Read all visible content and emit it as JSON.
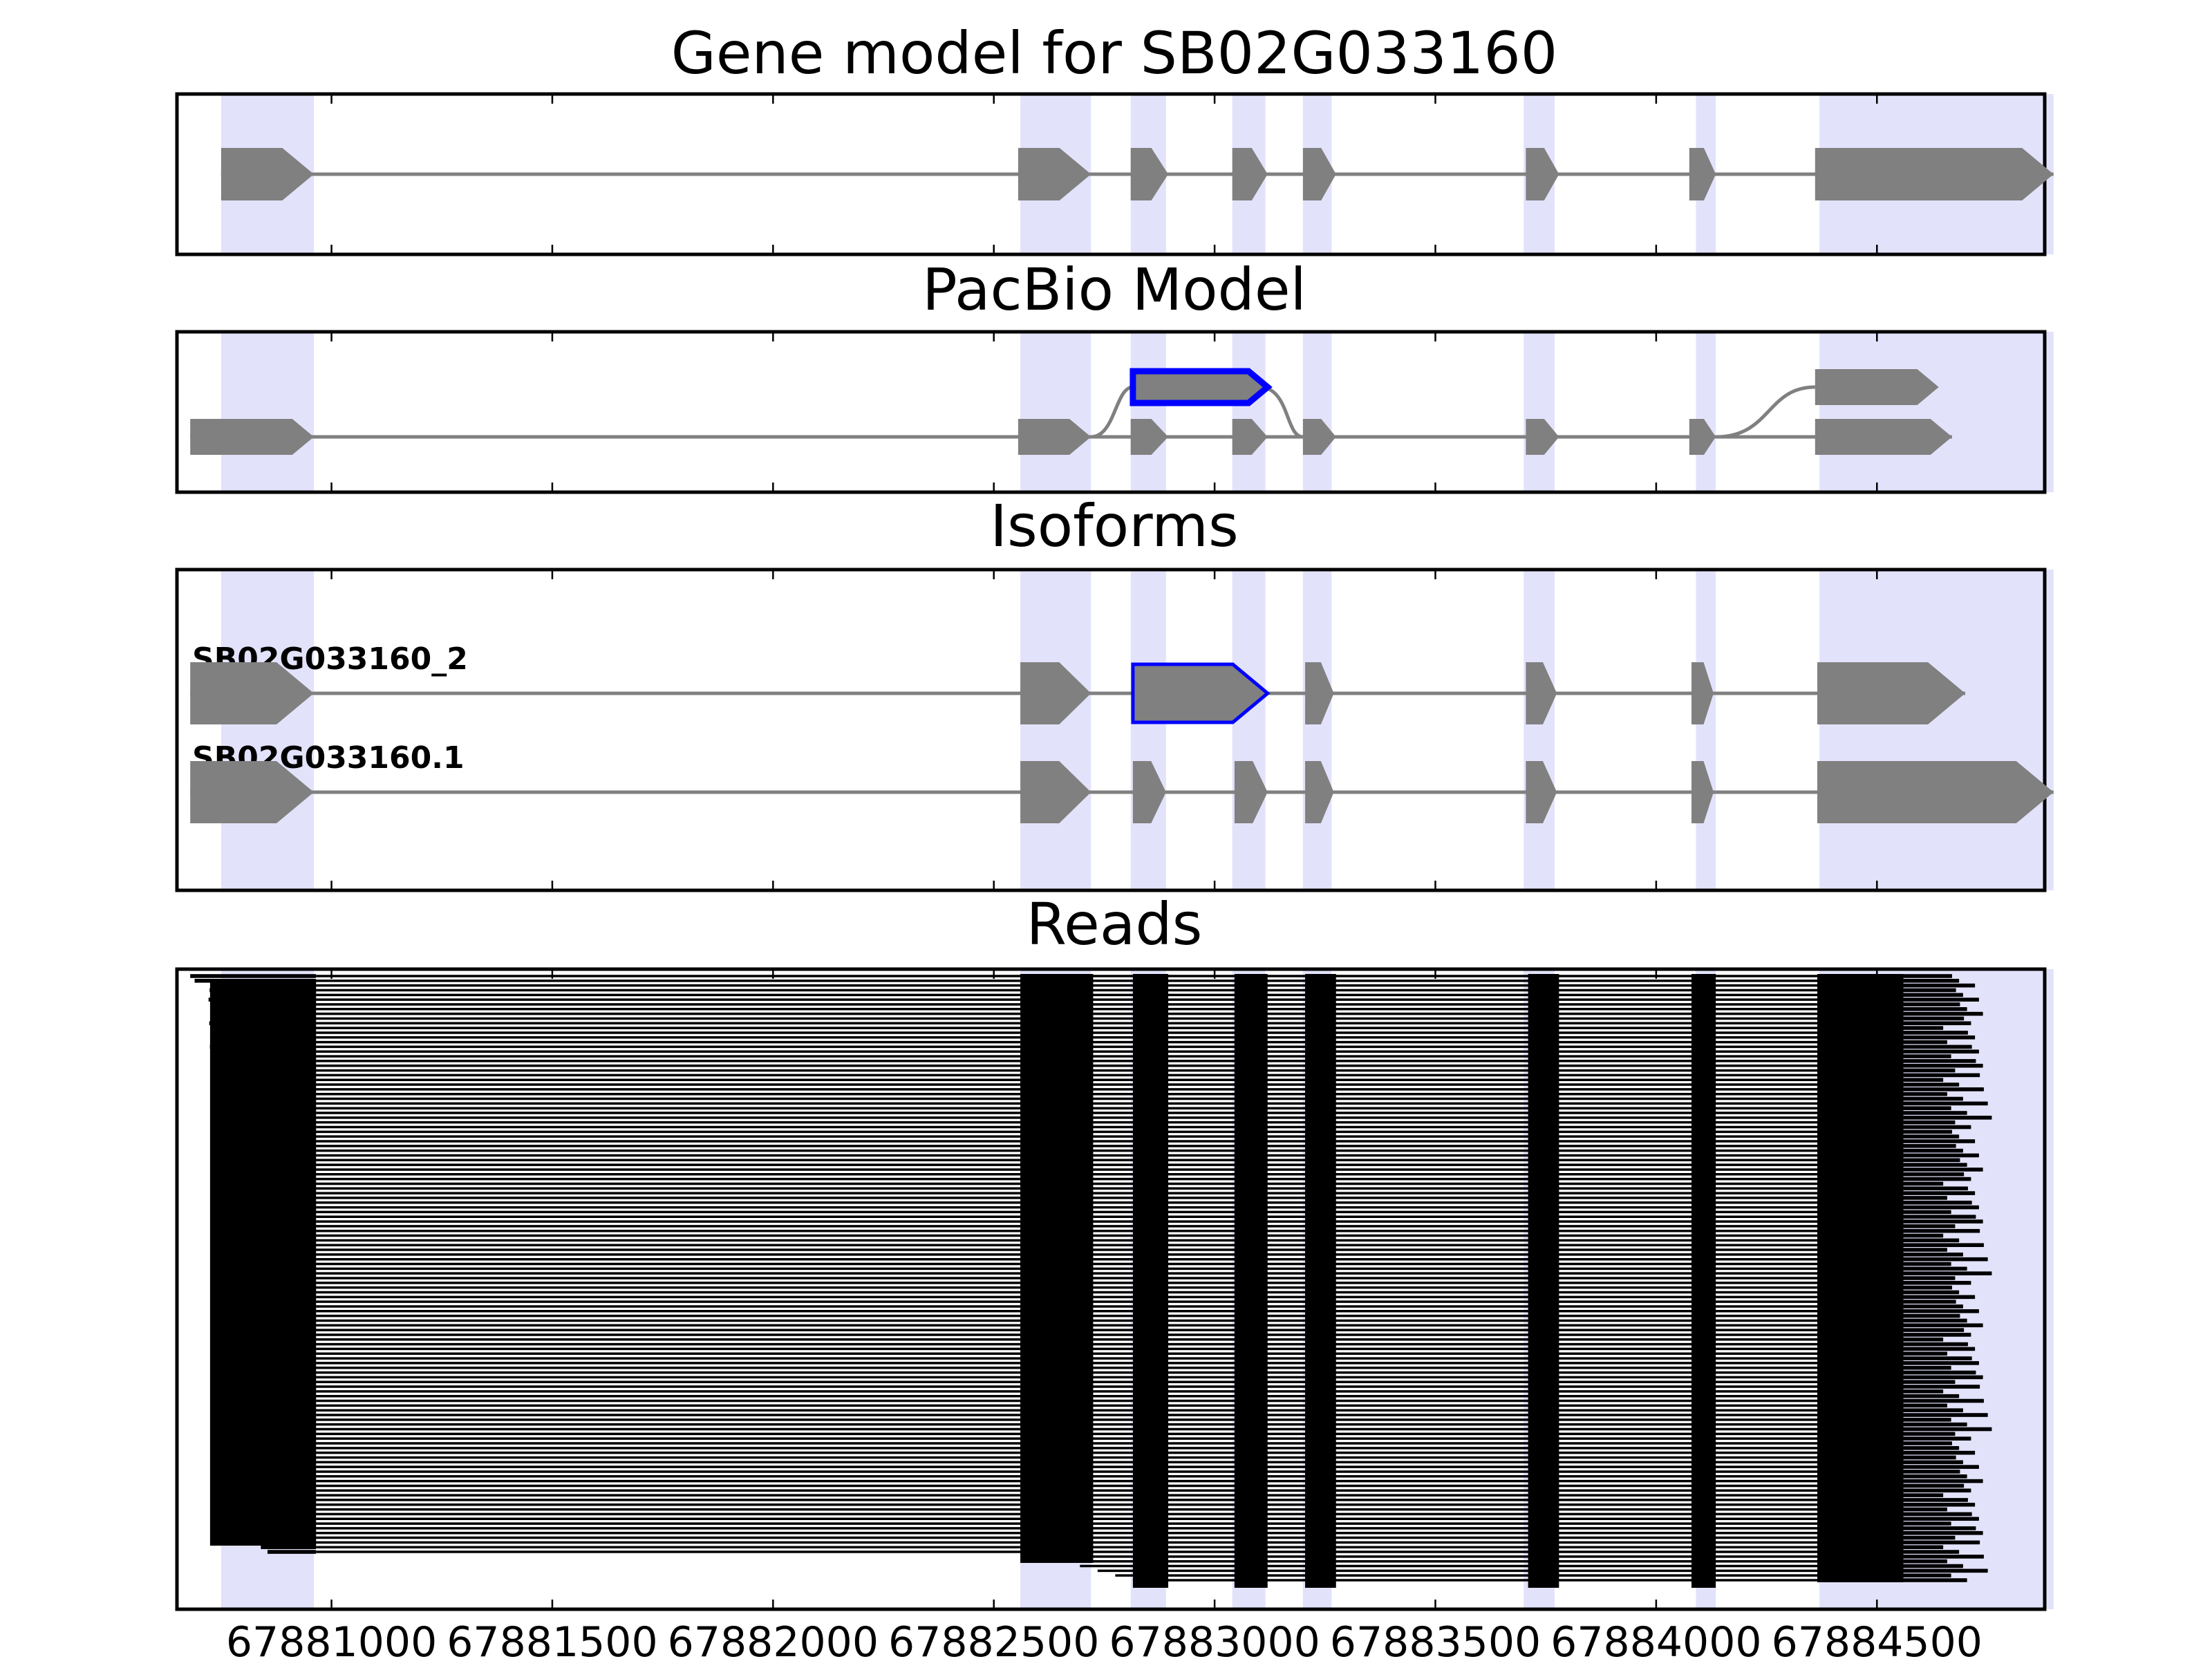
{
  "figure": {
    "titles": {
      "gene": "Gene model for SB02G033160",
      "pacbio": "PacBio Model",
      "isoforms": "Isoforms",
      "reads": "Reads"
    }
  },
  "chart_data": {
    "type": "gene_track",
    "xlim": [
      67880650,
      67884880
    ],
    "xticks": [
      67881000,
      67881500,
      67882000,
      67882500,
      67883000,
      67883500,
      67884000,
      67884500
    ],
    "xtick_labels": [
      "67881000",
      "67881500",
      "67882000",
      "67882500",
      "67883000",
      "67883500",
      "67884000",
      "67884500"
    ],
    "colors": {
      "exon": "#808080",
      "highlight": "#0000ff",
      "shade": "#e2e2fb",
      "read": "#000000",
      "intron": "#808080"
    },
    "shaded_exon_regions": [
      [
        67880750,
        67880960
      ],
      [
        67882560,
        67882720
      ],
      [
        67882810,
        67882890
      ],
      [
        67883040,
        67883115
      ],
      [
        67883200,
        67883265
      ],
      [
        67883700,
        67883770
      ],
      [
        67884090,
        67884135
      ],
      [
        67884370,
        67884900
      ]
    ],
    "gene_model": {
      "exons": [
        [
          67880750,
          67880960
        ],
        [
          67882555,
          67882720
        ],
        [
          67882810,
          67882895
        ],
        [
          67883040,
          67883120
        ],
        [
          67883200,
          67883275
        ],
        [
          67883705,
          67883780
        ],
        [
          67884075,
          67884135
        ],
        [
          67884360,
          67884900
        ]
      ]
    },
    "pacbio_model": {
      "main": {
        "exons": [
          [
            67880680,
            67880960
          ],
          [
            67882555,
            67882720
          ],
          [
            67882810,
            67882895
          ],
          [
            67883040,
            67883120
          ],
          [
            67883200,
            67883275
          ],
          [
            67883705,
            67883780
          ],
          [
            67884075,
            67884135
          ],
          [
            67884360,
            67884670
          ]
        ]
      },
      "alt_exon": {
        "range": [
          67882815,
          67883120
        ],
        "highlight": true
      },
      "alt_terminal": {
        "range": [
          67884360,
          67884640
        ]
      }
    },
    "isoforms": [
      {
        "name": "SB02G033160_2",
        "exons": [
          [
            67880680,
            67880960
          ],
          [
            67882560,
            67882720
          ],
          [
            67882815,
            67883120
          ],
          [
            67883205,
            67883270
          ],
          [
            67883705,
            67883775
          ],
          [
            67884080,
            67884130
          ],
          [
            67884365,
            67884700
          ]
        ],
        "highlight_exon_index": 2
      },
      {
        "name": "SB02G033160.1",
        "exons": [
          [
            67880680,
            67880960
          ],
          [
            67882560,
            67882720
          ],
          [
            67882815,
            67882890
          ],
          [
            67883045,
            67883120
          ],
          [
            67883205,
            67883270
          ],
          [
            67883705,
            67883775
          ],
          [
            67884080,
            67884130
          ],
          [
            67884365,
            67884900
          ]
        ]
      }
    ],
    "reads": {
      "count": 129,
      "exon_blocks": [
        [
          67882560,
          67882725
        ],
        [
          67882815,
          67882895
        ],
        [
          67883045,
          67883120
        ],
        [
          67883205,
          67883275
        ],
        [
          67883710,
          67883780
        ],
        [
          67884080,
          67884135
        ],
        [
          67884365,
          67884560
        ]
      ],
      "first_exon_end": 67880965
    }
  }
}
